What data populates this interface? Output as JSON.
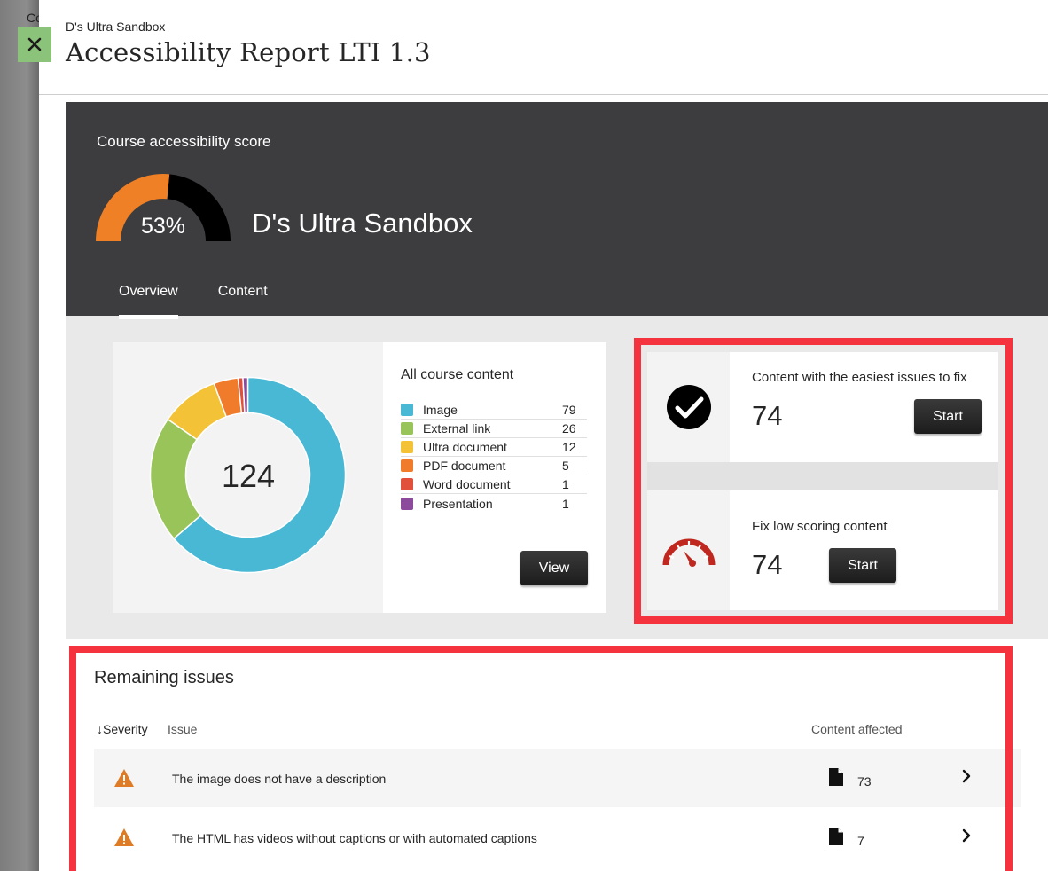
{
  "background": {
    "peek_text": "Co"
  },
  "close_button": {
    "icon": "close-icon"
  },
  "header": {
    "breadcrumb": "D's Ultra Sandbox",
    "title": "Accessibility Report LTI 1.3"
  },
  "score": {
    "label": "Course accessibility score",
    "value_text": "53%",
    "value": 53,
    "course_name": "D's Ultra Sandbox",
    "colors": {
      "filled": "#f08025",
      "remaining": "#000000"
    }
  },
  "tabs": [
    {
      "label": "Overview",
      "active": true
    },
    {
      "label": "Content",
      "active": false
    }
  ],
  "content_summary": {
    "title": "All course content",
    "total": "124",
    "view_label": "View",
    "items": [
      {
        "label": "Image",
        "count": "79",
        "color": "#48b8d4"
      },
      {
        "label": "External link",
        "count": "26",
        "color": "#99c45a"
      },
      {
        "label": "Ultra document",
        "count": "12",
        "color": "#f4c237"
      },
      {
        "label": "PDF document",
        "count": "5",
        "color": "#f07b2a"
      },
      {
        "label": "Word document",
        "count": "1",
        "color": "#e1503a"
      },
      {
        "label": "Presentation",
        "count": "1",
        "color": "#8b4a9c"
      }
    ]
  },
  "tasks": {
    "easiest": {
      "label": "Content with the easiest issues to fix",
      "count": "74",
      "button": "Start",
      "icon": "checkmark-circle-icon"
    },
    "low_scoring": {
      "label": "Fix low scoring content",
      "count": "74",
      "button": "Start",
      "icon": "speedometer-icon"
    }
  },
  "issues": {
    "title": "Remaining issues",
    "columns": {
      "severity": "Severity",
      "issue": "Issue",
      "affected": "Content affected"
    },
    "rows": [
      {
        "text": "The image does not have a description",
        "count": "73"
      },
      {
        "text": "The HTML has videos without captions or with automated captions",
        "count": "7"
      }
    ]
  }
}
